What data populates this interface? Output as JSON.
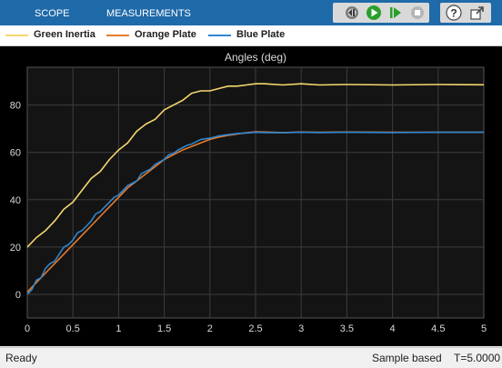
{
  "toolstrip": {
    "tabs": [
      "SCOPE",
      "MEASUREMENTS"
    ],
    "icons": [
      "step-back-icon",
      "run-icon",
      "step-forward-icon",
      "stop-icon",
      "help-icon",
      "undock-icon"
    ]
  },
  "legend": [
    {
      "name": "Green Inertia",
      "color": "#f5d76e"
    },
    {
      "name": "Orange Plate",
      "color": "#e87b2c"
    },
    {
      "name": "Blue Plate",
      "color": "#2f86d0"
    }
  ],
  "chart_data": {
    "type": "line",
    "title": "Angles (deg)",
    "xlim": [
      0,
      5
    ],
    "ylim": [
      -10,
      96
    ],
    "xticks": [
      "0",
      "0.5",
      "1",
      "1.5",
      "2",
      "2.5",
      "3",
      "3.5",
      "4",
      "4.5",
      "5"
    ],
    "yticks": [
      "0",
      "20",
      "40",
      "60",
      "80"
    ],
    "grid": true,
    "series": [
      {
        "name": "Green Inertia",
        "color": "#f5d76e",
        "x": [
          0,
          0.1,
          0.2,
          0.3,
          0.4,
          0.5,
          0.6,
          0.7,
          0.8,
          0.9,
          1.0,
          1.1,
          1.2,
          1.3,
          1.4,
          1.5,
          1.6,
          1.7,
          1.8,
          1.9,
          2.0,
          2.1,
          2.2,
          2.3,
          2.4,
          2.5,
          2.6,
          2.8,
          3.0,
          3.2,
          3.5,
          4.0,
          4.5,
          5.0
        ],
        "y": [
          20,
          24,
          27,
          31,
          36,
          39,
          44,
          49,
          52,
          57,
          61,
          64,
          69,
          72,
          74,
          78,
          80,
          82,
          85,
          86,
          86,
          87,
          88,
          88,
          88.5,
          89,
          89,
          88.5,
          89,
          88.5,
          88.7,
          88.5,
          88.7,
          88.6
        ]
      },
      {
        "name": "Orange Plate",
        "color": "#e87b2c",
        "x": [
          0,
          0.1,
          0.2,
          0.3,
          0.4,
          0.5,
          0.6,
          0.7,
          0.8,
          0.9,
          1.0,
          1.1,
          1.2,
          1.3,
          1.4,
          1.5,
          1.6,
          1.7,
          1.8,
          1.9,
          2.0,
          2.1,
          2.2,
          2.3,
          2.4,
          2.5,
          2.6,
          2.8,
          3.0,
          3.2,
          3.5,
          4.0,
          4.5,
          5.0
        ],
        "y": [
          1,
          5,
          9,
          13,
          17,
          21,
          25,
          29,
          33,
          37,
          41,
          45,
          48,
          51,
          54,
          57,
          59,
          61,
          62.5,
          64,
          65.5,
          66.5,
          67.2,
          67.8,
          68.3,
          68.7,
          68.6,
          68.4,
          68.6,
          68.5,
          68.6,
          68.5,
          68.5,
          68.5
        ]
      },
      {
        "name": "Blue Plate",
        "color": "#2f86d0",
        "x": [
          0,
          0.05,
          0.1,
          0.15,
          0.2,
          0.25,
          0.3,
          0.35,
          0.4,
          0.45,
          0.5,
          0.55,
          0.6,
          0.65,
          0.7,
          0.75,
          0.8,
          0.85,
          0.9,
          0.95,
          1.0,
          1.05,
          1.1,
          1.15,
          1.2,
          1.25,
          1.3,
          1.35,
          1.4,
          1.45,
          1.5,
          1.55,
          1.6,
          1.65,
          1.7,
          1.75,
          1.8,
          1.9,
          2.0,
          2.1,
          2.2,
          2.3,
          2.4,
          2.5,
          2.6,
          2.8,
          3.0,
          3.2,
          3.5,
          4.0,
          4.5,
          5.0
        ],
        "y": [
          0,
          2,
          6,
          7,
          11,
          13,
          14,
          17,
          20,
          21,
          23,
          26,
          27,
          29,
          31,
          34,
          35,
          37,
          39,
          41,
          42,
          44,
          46,
          47,
          48,
          51,
          52,
          53,
          55,
          56,
          57,
          59,
          59.5,
          61,
          62,
          63,
          63.5,
          65.5,
          66,
          67,
          67.5,
          68,
          68.2,
          68.5,
          68.4,
          68.3,
          68.5,
          68.4,
          68.5,
          68.4,
          68.5,
          68.5
        ]
      }
    ]
  },
  "status": {
    "left": "Ready",
    "mode": "Sample based",
    "time": "T=5.0000"
  }
}
